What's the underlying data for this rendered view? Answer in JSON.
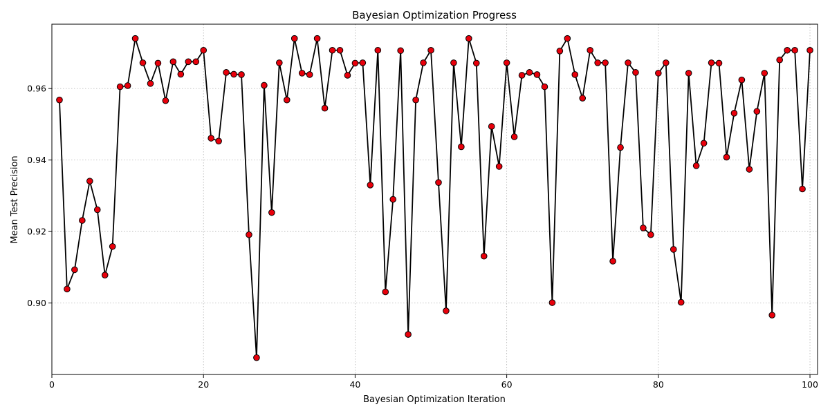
{
  "chart_data": {
    "type": "line",
    "title": "Bayesian Optimization Progress",
    "xlabel": "Bayesian Optimization Iteration",
    "ylabel": "Mean Test Precision",
    "xlim": [
      0,
      101
    ],
    "ylim": [
      0.88,
      0.978
    ],
    "xticks": [
      0,
      20,
      40,
      60,
      80,
      100
    ],
    "yticks": [
      0.9,
      0.92,
      0.94,
      0.96
    ],
    "xtick_labels": [
      "0",
      "20",
      "40",
      "60",
      "80",
      "100"
    ],
    "ytick_labels": [
      "0.90",
      "0.92",
      "0.94",
      "0.96"
    ],
    "grid": true,
    "marker": "circle",
    "marker_color": "#e8000b",
    "line_color": "#000000",
    "x": [
      1,
      2,
      3,
      4,
      5,
      6,
      7,
      8,
      9,
      10,
      11,
      12,
      13,
      14,
      15,
      16,
      17,
      18,
      19,
      20,
      21,
      22,
      23,
      24,
      25,
      26,
      27,
      28,
      29,
      30,
      31,
      32,
      33,
      34,
      35,
      36,
      37,
      38,
      39,
      40,
      41,
      42,
      43,
      44,
      45,
      46,
      47,
      48,
      49,
      50,
      51,
      52,
      53,
      54,
      55,
      56,
      57,
      58,
      59,
      60,
      61,
      62,
      63,
      64,
      65,
      66,
      67,
      68,
      69,
      70,
      71,
      72,
      73,
      74,
      75,
      76,
      77,
      78,
      79,
      80,
      81,
      82,
      83,
      84,
      85,
      86,
      87,
      88,
      89,
      90,
      91,
      92,
      93,
      94,
      95,
      96,
      97,
      98,
      99,
      100
    ],
    "y": [
      0.9568,
      0.9039,
      0.9093,
      0.9231,
      0.9341,
      0.9261,
      0.9078,
      0.9158,
      0.9605,
      0.9608,
      0.974,
      0.9672,
      0.9614,
      0.9671,
      0.9566,
      0.9675,
      0.964,
      0.9675,
      0.9675,
      0.9707,
      0.9461,
      0.9453,
      0.9645,
      0.964,
      0.9639,
      0.9191,
      0.8847,
      0.9609,
      0.9253,
      0.9672,
      0.9568,
      0.974,
      0.9643,
      0.9639,
      0.974,
      0.9545,
      0.9707,
      0.9707,
      0.9637,
      0.9671,
      0.9672,
      0.933,
      0.9707,
      0.9031,
      0.929,
      0.9706,
      0.8912,
      0.9568,
      0.9672,
      0.9707,
      0.9337,
      0.8978,
      0.9672,
      0.9437,
      0.974,
      0.9671,
      0.9131,
      0.9494,
      0.9382,
      0.9672,
      0.9465,
      0.9637,
      0.9645,
      0.9639,
      0.9605,
      0.9001,
      0.9705,
      0.974,
      0.9639,
      0.9573,
      0.9707,
      0.9672,
      0.9672,
      0.9117,
      0.9435,
      0.9672,
      0.9645,
      0.921,
      0.9191,
      0.9643,
      0.9672,
      0.915,
      0.9002,
      0.9643,
      0.9384,
      0.9447,
      0.9672,
      0.9671,
      0.9408,
      0.9531,
      0.9624,
      0.9374,
      0.9536,
      0.9643,
      0.8966,
      0.968,
      0.9707,
      0.9707,
      0.9319,
      0.9707
    ]
  }
}
